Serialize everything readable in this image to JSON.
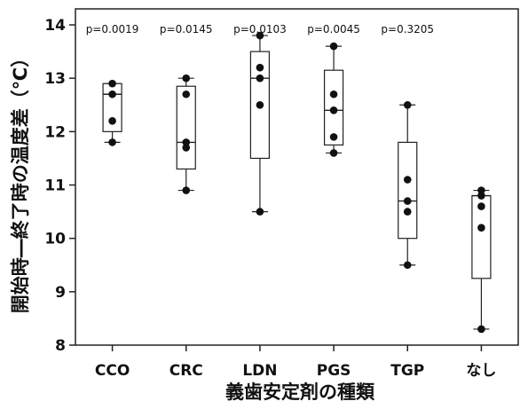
{
  "chart_data": {
    "type": "box",
    "xlabel": "義歯安定剤の種類",
    "ylabel": "開始時―終了時の温度差（℃）",
    "ylim": [
      8,
      14.3
    ],
    "yticks": [
      8,
      9,
      10,
      11,
      12,
      13,
      14
    ],
    "grid": false,
    "categories": [
      "CCO",
      "CRC",
      "LDN",
      "PGS",
      "TGP",
      "なし"
    ],
    "pvalues": [
      "p=0.0019",
      "p=0.0145",
      "p=0.0103",
      "p=0.0045",
      "p=0.3205",
      ""
    ],
    "boxes": [
      {
        "min": 11.8,
        "q1": 12.0,
        "median": 12.7,
        "q3": 12.9,
        "max": 12.9,
        "points": [
          12.9,
          12.7,
          12.2,
          11.8
        ]
      },
      {
        "min": 10.9,
        "q1": 11.3,
        "median": 11.8,
        "q3": 12.85,
        "max": 13.0,
        "points": [
          13.0,
          12.7,
          11.8,
          11.7,
          10.9
        ]
      },
      {
        "min": 10.5,
        "q1": 11.5,
        "median": 13.0,
        "q3": 13.5,
        "max": 13.8,
        "points": [
          13.8,
          13.2,
          13.0,
          12.5,
          10.5
        ]
      },
      {
        "min": 11.6,
        "q1": 11.75,
        "median": 12.4,
        "q3": 13.15,
        "max": 13.6,
        "points": [
          13.6,
          12.7,
          12.4,
          11.9,
          11.6
        ]
      },
      {
        "min": 9.5,
        "q1": 10.0,
        "median": 10.7,
        "q3": 11.8,
        "max": 12.5,
        "points": [
          12.5,
          11.1,
          10.7,
          10.5,
          9.5
        ]
      },
      {
        "min": 8.3,
        "q1": 9.25,
        "median": 10.8,
        "q3": 10.8,
        "max": 10.9,
        "points": [
          10.9,
          10.8,
          10.6,
          10.2,
          8.3
        ]
      }
    ]
  }
}
